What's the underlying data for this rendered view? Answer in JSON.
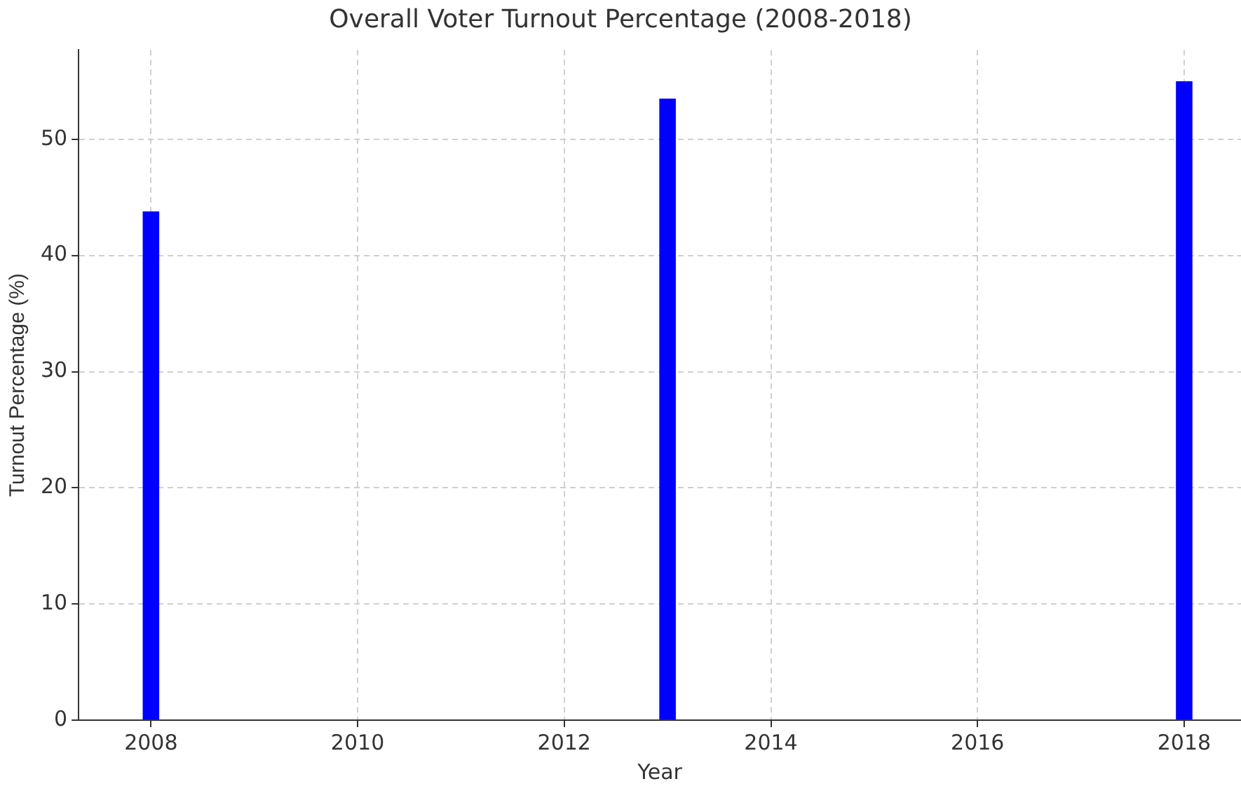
{
  "chart_data": {
    "type": "bar",
    "title": "Overall Voter Turnout Percentage (2008-2018)",
    "xlabel": "Year",
    "ylabel": "Turnout Percentage (%)",
    "x": [
      2008,
      2013,
      2018
    ],
    "values": [
      43.8,
      53.5,
      55.0
    ],
    "color": "#0000ff",
    "xlim": [
      2007.3,
      2018.55
    ],
    "xticks": [
      2008,
      2010,
      2012,
      2014,
      2016,
      2018
    ],
    "ylim": [
      0,
      57.7
    ],
    "yticks": [
      0,
      10,
      20,
      30,
      40,
      50
    ],
    "grid": true
  }
}
